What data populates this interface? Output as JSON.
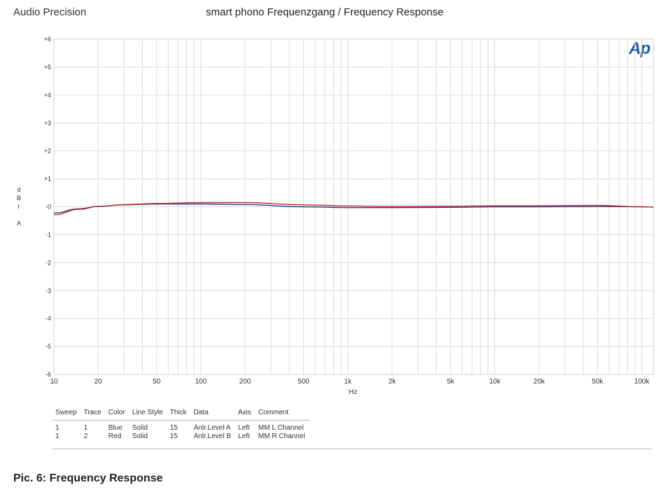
{
  "header": {
    "brand": "Audio Precision",
    "title": "smart phono Frequenzgang / Frequency Response",
    "logo_text": "Ap"
  },
  "colors": {
    "blue": "#2a3f8f",
    "red": "#c0302f",
    "grid": "#dcdcdc",
    "logo": "#1f5fa8"
  },
  "chart_data": {
    "type": "line",
    "title": "smart phono Frequenzgang / Frequency Response",
    "xlabel": "Hz",
    "ylabel": [
      "d",
      "B",
      "r",
      "A"
    ],
    "xscale": "log",
    "xlim": [
      10,
      120000
    ],
    "ylim": [
      -6,
      6
    ],
    "grid": true,
    "x_ticks": [
      10,
      20,
      50,
      100,
      200,
      500,
      1000,
      2000,
      5000,
      10000,
      20000,
      50000,
      100000
    ],
    "x_tick_labels": [
      "10",
      "20",
      "50",
      "100",
      "200",
      "500",
      "1k",
      "2k",
      "5k",
      "10k",
      "20k",
      "50k",
      "100k"
    ],
    "y_ticks": [
      6,
      5,
      4,
      3,
      2,
      1,
      0,
      -1,
      -2,
      -3,
      -4,
      -5,
      -6
    ],
    "y_tick_labels": [
      "+6",
      "+5",
      "+4",
      "+3",
      "+2",
      "+1",
      "-0",
      "-1",
      "-2",
      "-3",
      "-4",
      "-5",
      "-6"
    ],
    "series": [
      {
        "name": "MM L Channel",
        "color": "#2a3f8f",
        "x": [
          10,
          15,
          20,
          30,
          50,
          100,
          200,
          500,
          1000,
          2000,
          5000,
          10000,
          20000,
          50000,
          100000,
          120000
        ],
        "y": [
          -0.22,
          -0.07,
          0.02,
          0.07,
          0.1,
          0.1,
          0.08,
          0.0,
          -0.03,
          -0.03,
          -0.02,
          0.0,
          0.0,
          0.01,
          0.0,
          -0.01
        ]
      },
      {
        "name": "MM R Channel",
        "color": "#c0302f",
        "x": [
          10,
          15,
          20,
          30,
          50,
          100,
          200,
          500,
          1000,
          2000,
          5000,
          10000,
          20000,
          50000,
          100000,
          120000
        ],
        "y": [
          -0.28,
          -0.09,
          0.01,
          0.08,
          0.12,
          0.15,
          0.15,
          0.07,
          0.03,
          0.01,
          0.02,
          0.04,
          0.04,
          0.05,
          0.0,
          -0.01
        ]
      }
    ]
  },
  "legend_table": {
    "headers": [
      "Sweep",
      "Trace",
      "Color",
      "Line Style",
      "Thick",
      "Data",
      "Axis",
      "Comment"
    ],
    "rows": [
      [
        "1",
        "1",
        "Blue",
        "Solid",
        "15",
        "Anlr.Level A",
        "Left",
        "MM L Channel"
      ],
      [
        "1",
        "2",
        "Red",
        "Solid",
        "15",
        "Anlr.Level B",
        "Left",
        "MM R Channel"
      ]
    ]
  },
  "caption": "Pic. 6: Frequency Response"
}
